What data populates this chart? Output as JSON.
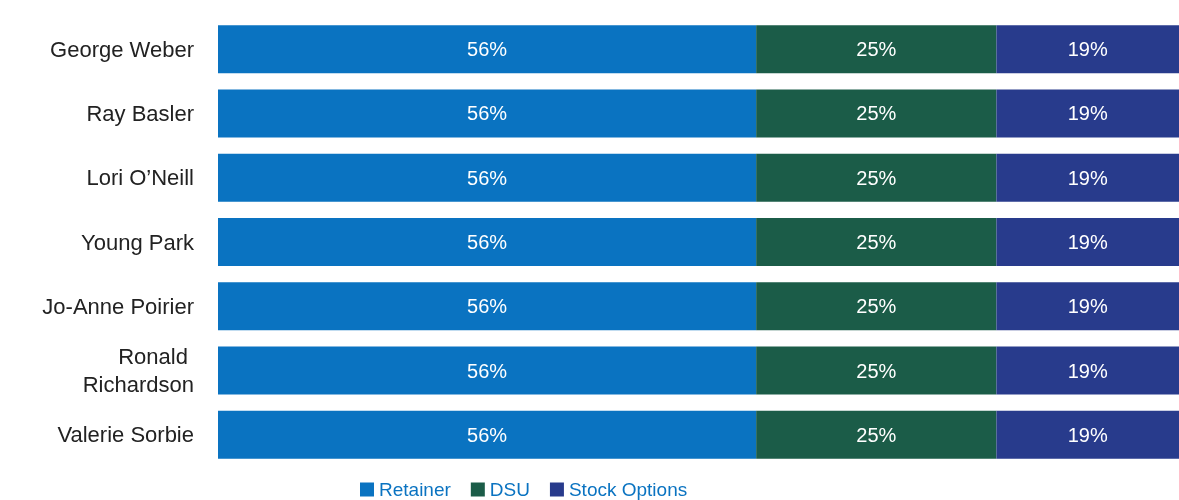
{
  "chart_data": {
    "type": "bar",
    "orientation": "horizontal",
    "stacked": true,
    "categories": [
      "George Weber",
      "Ray Basler",
      "Lori O’Neill",
      "Young Park",
      "Jo-Anne Poirier",
      "Ronald Richardson",
      "Valerie Sorbie"
    ],
    "series": [
      {
        "name": "Retainer",
        "color": "#0a73c1",
        "values": [
          56,
          56,
          56,
          56,
          56,
          56,
          56
        ],
        "value_labels": [
          "56%",
          "56%",
          "56%",
          "56%",
          "56%",
          "56%",
          "56%"
        ]
      },
      {
        "name": "DSU",
        "color": "#1b5c48",
        "values": [
          25,
          25,
          25,
          25,
          25,
          25,
          25
        ],
        "value_labels": [
          "25%",
          "25%",
          "25%",
          "25%",
          "25%",
          "25%",
          "25%"
        ]
      },
      {
        "name": "Stock Options",
        "color": "#283b8c",
        "values": [
          19,
          19,
          19,
          19,
          19,
          19,
          19
        ],
        "value_labels": [
          "19%",
          "19%",
          "19%",
          "19%",
          "19%",
          "19%",
          "19%"
        ]
      }
    ],
    "xlim": [
      0,
      100
    ],
    "tick_labels": "y",
    "grid": false,
    "legend": "bottom"
  }
}
